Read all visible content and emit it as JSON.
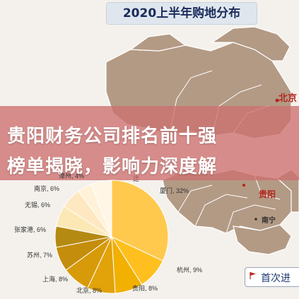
{
  "title": "2020上半年购地分布",
  "banner": {
    "line1": "贵阳财务公司排名前十强",
    "line2": "榜单揭晓，影响力深度解"
  },
  "map_labels": {
    "beijing": "北京",
    "guiyang": "贵阳",
    "nanning": "南宁",
    "xiamen_partial": "建"
  },
  "first_entry_button": "首次进",
  "colors": {
    "map_land": "#b39a85",
    "map_border": "#ffffff",
    "banner": "#cd706e",
    "accent_red": "#b3261e"
  },
  "chart_data": {
    "type": "pie",
    "slices": [
      {
        "label": "厦门, 32%",
        "value": 32,
        "color": "#ffc94d"
      },
      {
        "label": "杭州, 9%",
        "value": 9,
        "color": "#ffbf1f"
      },
      {
        "label": "贵阳, 8%",
        "value": 8,
        "color": "#f2b000"
      },
      {
        "label": "北京, 8%",
        "value": 8,
        "color": "#e2a20a"
      },
      {
        "label": "上海, 8%",
        "value": 8,
        "color": "#d79a08"
      },
      {
        "label": "苏州, 7%",
        "value": 7,
        "color": "#c48d0b"
      },
      {
        "label": "张家港, 6%",
        "value": 6,
        "color": "#b58a12"
      },
      {
        "label": "无锡, 6%",
        "value": 6,
        "color": "#fbe8b5"
      },
      {
        "label": "南京, 6%",
        "value": 6,
        "color": "#fde8c2"
      },
      {
        "label": "漳州, 4%",
        "value": 4,
        "color": "#fff2d8"
      },
      {
        "label": "",
        "value": 6,
        "color": "#fff6e6"
      }
    ]
  }
}
